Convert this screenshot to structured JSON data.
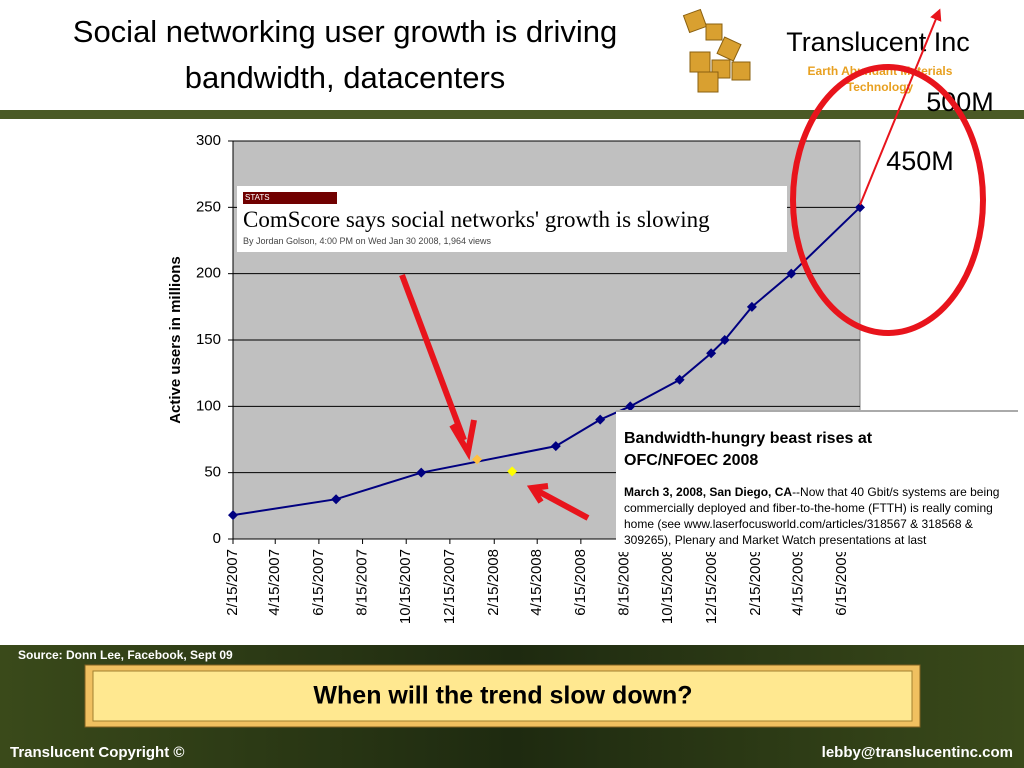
{
  "slide": {
    "title_line1": "Social networking user growth is driving",
    "title_line2": "bandwidth, datacenters",
    "logo_name": "Translucent Inc",
    "logo_tagline_line1": "Earth Abundant Materials",
    "logo_tagline_line2": "Technology",
    "source": "Source: Donn Lee, Facebook, Sept 09",
    "question": "When will the trend slow down?",
    "footer_left": "Translucent  Copyright ©",
    "footer_right": "lebby@translucentinc.com"
  },
  "inset1": {
    "tag": "STATS",
    "headline": "ComScore says social networks' growth is slowing",
    "byline": "By Jordan Golson, 4:00 PM on Wed Jan 30 2008, 1,964 views"
  },
  "inset2": {
    "headline_line1": "Bandwidth-hungry beast rises at",
    "headline_line2": "OFC/NFOEC 2008",
    "dateline": "March 3, 2008, San Diego, CA",
    "body": "--Now that 40 Gbit/s systems are being commercially deployed and fiber-to-the-home (FTTH) is really coming home (see www.laserfocusworld.com/articles/318567 & 318568 & 309265), Plenary and Market Watch presentations at last"
  },
  "chart_data": {
    "type": "line",
    "ylabel": "Active users in millions",
    "annotations": [
      "500M",
      "450M"
    ],
    "xlim": [
      "2/15/2007",
      "7/10/2009"
    ],
    "xticks": [
      "2/15/2007",
      "4/15/2007",
      "6/15/2007",
      "8/15/2007",
      "10/15/2007",
      "12/15/2007",
      "2/15/2008",
      "4/15/2008",
      "6/15/2008",
      "8/15/2008",
      "10/15/2008",
      "12/15/2008",
      "2/15/2009",
      "4/15/2009",
      "6/15/2009"
    ],
    "ylim": [
      0,
      300
    ],
    "yticks": [
      0,
      50,
      100,
      150,
      200,
      250,
      300
    ],
    "grid": true,
    "series": [
      {
        "color": "#000080",
        "x": [
          "2/15/2007",
          "7/9/2007",
          "11/5/2007",
          "5/11/2008",
          "7/12/2008",
          "8/23/2008",
          "10/31/2008",
          "12/14/2008",
          "1/2/2009",
          "2/9/2009",
          "4/5/2009",
          "7/10/2009"
        ],
        "values": [
          18,
          30,
          50,
          70,
          90,
          100,
          120,
          140,
          150,
          175,
          200,
          250
        ]
      },
      {
        "color": "#ffc040",
        "x": [
          "1/22/2008"
        ],
        "values": [
          60
        ]
      },
      {
        "color": "#ffff00",
        "x": [
          "3/11/2008"
        ],
        "values": [
          51
        ]
      }
    ]
  }
}
